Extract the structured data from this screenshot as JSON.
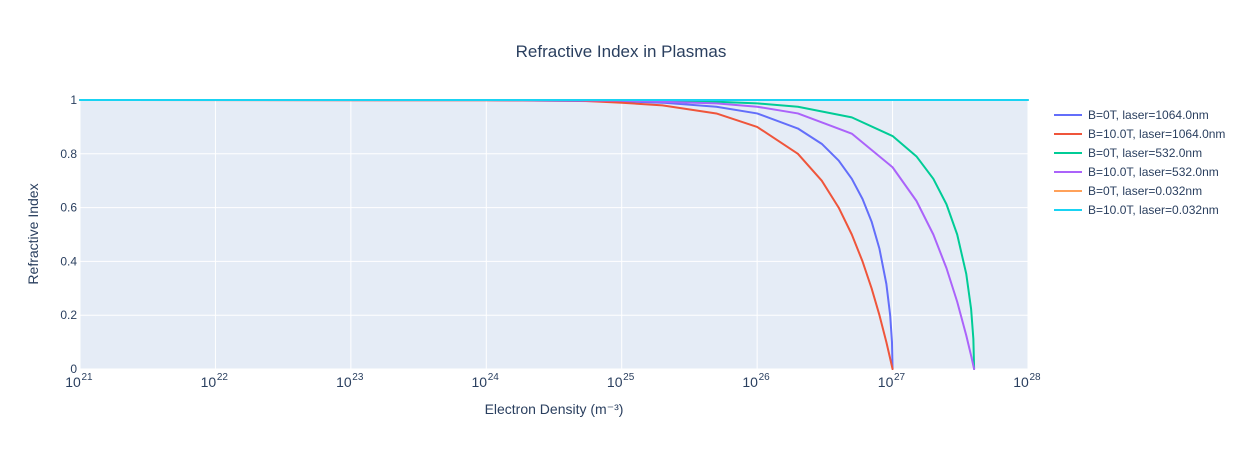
{
  "chart_data": {
    "type": "line",
    "title": "Refractive Index in Plasmas",
    "xlabel": "Electron Density (m⁻³)",
    "ylabel": "Refractive Index",
    "x_scale": "log",
    "xlim": [
      1e+21,
      1e+28
    ],
    "ylim": [
      0,
      1
    ],
    "x_ticks": [
      {
        "base": "10",
        "exp": "21"
      },
      {
        "base": "10",
        "exp": "22"
      },
      {
        "base": "10",
        "exp": "23"
      },
      {
        "base": "10",
        "exp": "24"
      },
      {
        "base": "10",
        "exp": "25"
      },
      {
        "base": "10",
        "exp": "26"
      },
      {
        "base": "10",
        "exp": "27"
      },
      {
        "base": "10",
        "exp": "28"
      }
    ],
    "y_ticks": [
      "0",
      "0.2",
      "0.4",
      "0.6",
      "0.8",
      "1"
    ],
    "grid": true,
    "legend_position": "right",
    "series": [
      {
        "name": "B=0T, laser=1064.0nm",
        "color": "#636efa",
        "x": [
          1e+21,
          1e+24,
          1e+25,
          2e+25,
          5e+25,
          1e+26,
          2e+26,
          3e+26,
          4e+26,
          5e+26,
          6e+26,
          7e+26,
          8e+26,
          9e+26,
          9.6e+26,
          9.9e+26,
          1e+27
        ],
        "y": [
          1,
          0.9995,
          0.995,
          0.99,
          0.975,
          0.95,
          0.894,
          0.837,
          0.775,
          0.707,
          0.632,
          0.548,
          0.447,
          0.316,
          0.2,
          0.1,
          0
        ]
      },
      {
        "name": "B=10.0T, laser=1064.0nm",
        "color": "#ef553b",
        "x": [
          1e+21,
          1e+24,
          5e+24,
          1e+25,
          2e+25,
          5e+25,
          1e+26,
          2e+26,
          3e+26,
          4e+26,
          5e+26,
          6e+26,
          7e+26,
          8e+26,
          9e+26,
          1e+27
        ],
        "y": [
          1,
          0.999,
          0.997,
          0.99,
          0.98,
          0.95,
          0.9,
          0.8,
          0.7,
          0.6,
          0.5,
          0.4,
          0.3,
          0.2,
          0.1,
          0
        ]
      },
      {
        "name": "B=0T, laser=532.0nm",
        "color": "#00cc96",
        "x": [
          1e+21,
          1e+24,
          1e+25,
          5e+25,
          1e+26,
          2e+26,
          5e+26,
          1e+27,
          1.5e+27,
          2e+27,
          2.5e+27,
          3e+27,
          3.5e+27,
          3.8e+27,
          3.95e+27,
          4e+27
        ],
        "y": [
          1,
          1,
          0.9987,
          0.9937,
          0.9874,
          0.975,
          0.9354,
          0.866,
          0.7906,
          0.7071,
          0.6124,
          0.5,
          0.3536,
          0.2236,
          0.1118,
          0
        ]
      },
      {
        "name": "B=10.0T, laser=532.0nm",
        "color": "#ab63fa",
        "x": [
          1e+21,
          1e+24,
          1e+25,
          5e+25,
          1e+26,
          2e+26,
          5e+26,
          1e+27,
          1.5e+27,
          2e+27,
          2.5e+27,
          3e+27,
          3.5e+27,
          3.8e+27,
          4e+27
        ],
        "y": [
          1,
          0.9999,
          0.9975,
          0.9875,
          0.975,
          0.95,
          0.875,
          0.75,
          0.625,
          0.5,
          0.375,
          0.25,
          0.125,
          0.05,
          0
        ]
      },
      {
        "name": "B=0T, laser=0.032nm",
        "color": "#ffa15a",
        "x": [
          1e+21,
          1e+28
        ],
        "y": [
          1,
          1
        ]
      },
      {
        "name": "B=10.0T, laser=0.032nm",
        "color": "#19d3f3",
        "x": [
          1e+21,
          1e+28
        ],
        "y": [
          1,
          1
        ]
      }
    ]
  }
}
